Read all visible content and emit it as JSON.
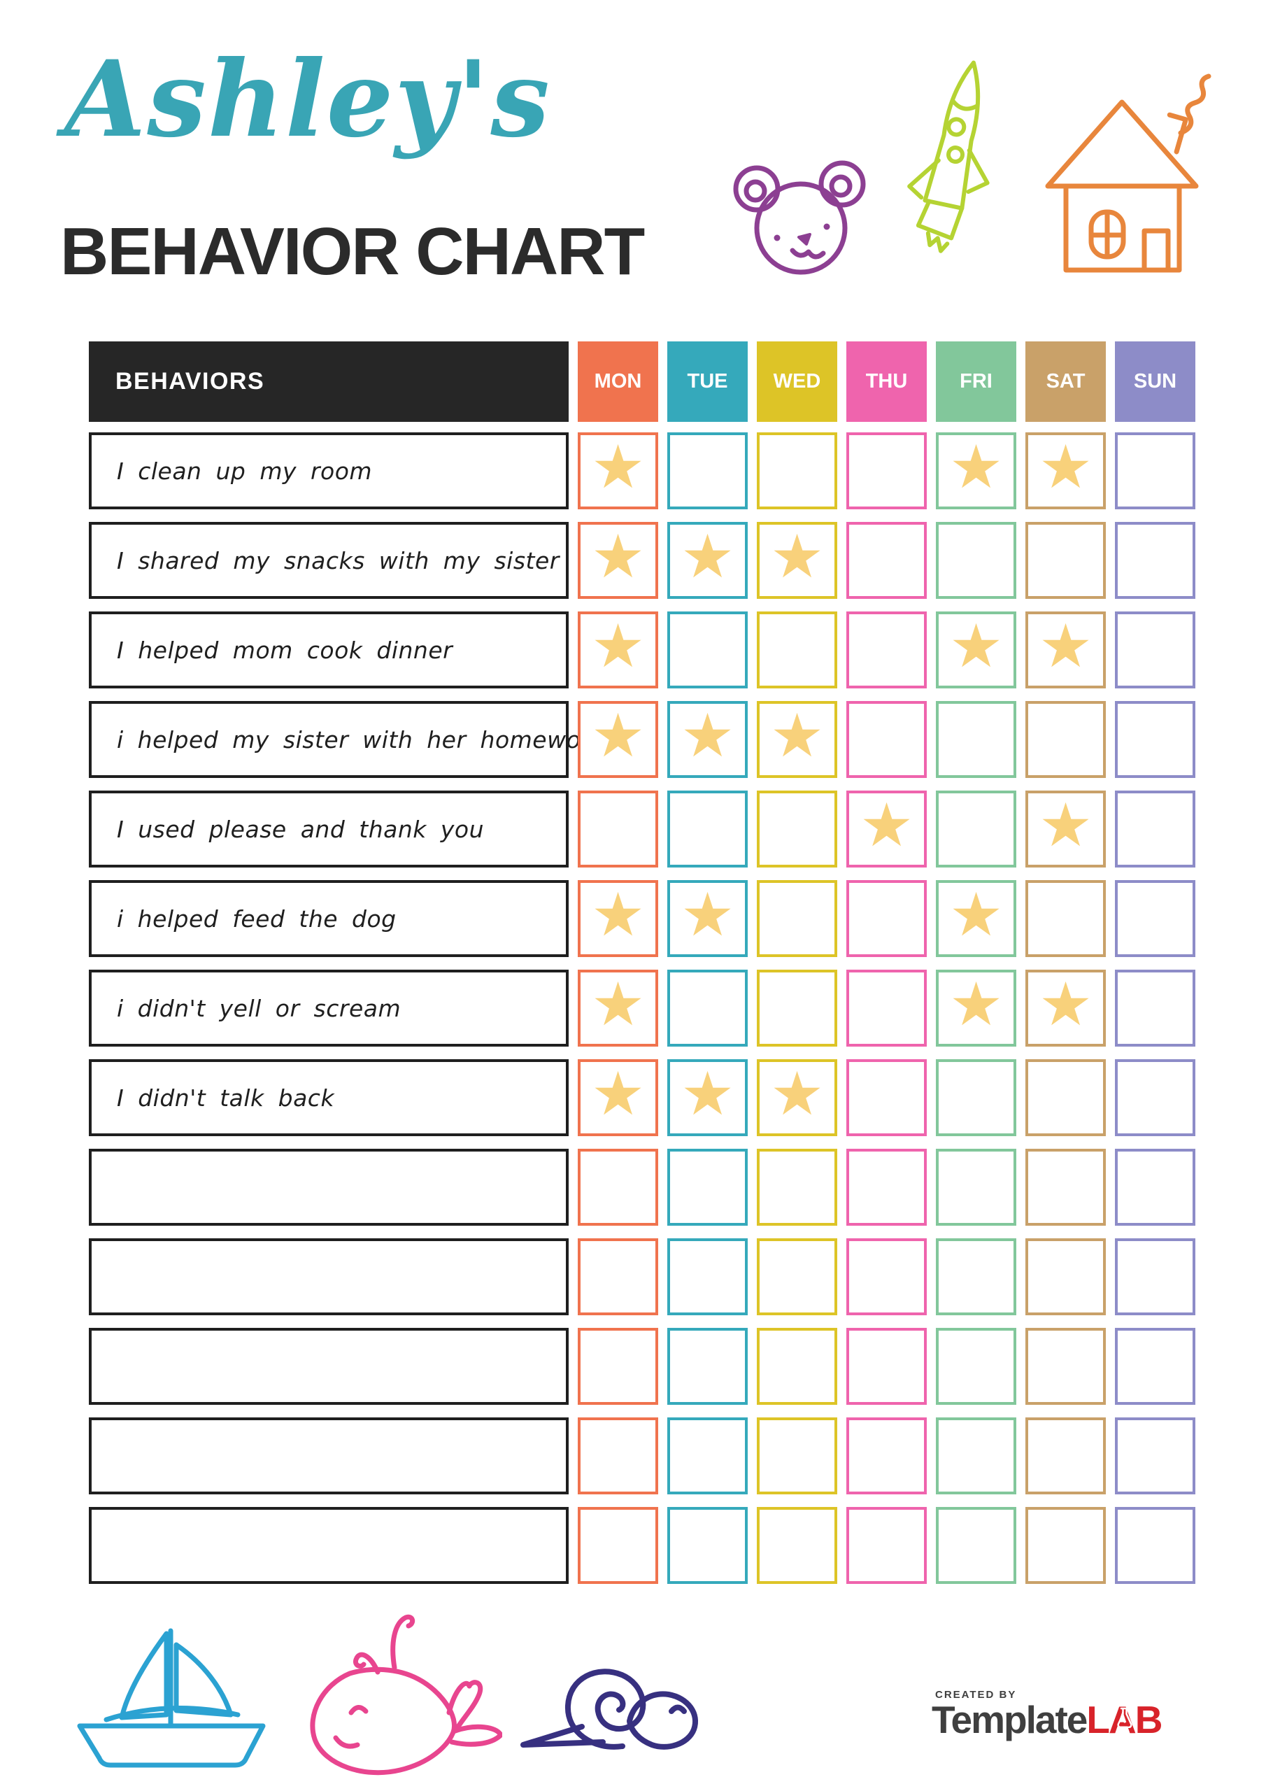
{
  "title": {
    "script": "Ashley's",
    "main": "BEHAVIOR CHART"
  },
  "colors": {
    "title_teal": "#39a5b5",
    "heading_text": "#2b2b2b",
    "header_bg": "#262626",
    "header_text": "#ffffff",
    "row_border": "#1f1f1f",
    "star": "#f8d17b",
    "bear": "#8c3f92",
    "rocket": "#b5d333",
    "house": "#e8863c",
    "sailboat": "#2ba2d2",
    "whale": "#e8458f",
    "snail": "#373080",
    "logo_dark": "#3f3f3f",
    "logo_red": "#d8232a"
  },
  "table": {
    "behaviors_header": "BEHAVIORS",
    "days": [
      {
        "label": "MON",
        "color": "#f0734e"
      },
      {
        "label": "TUE",
        "color": "#35a9bb"
      },
      {
        "label": "WED",
        "color": "#ddc427"
      },
      {
        "label": "THU",
        "color": "#ef64ad"
      },
      {
        "label": "FRI",
        "color": "#82c79b"
      },
      {
        "label": "SAT",
        "color": "#c9a169"
      },
      {
        "label": "SUN",
        "color": "#8d8cc8"
      }
    ],
    "rows": [
      {
        "behavior": "I clean up my room",
        "stars": [
          "MON",
          "FRI",
          "SAT"
        ]
      },
      {
        "behavior": "I shared my snacks with my sister",
        "stars": [
          "MON",
          "TUE",
          "WED"
        ]
      },
      {
        "behavior": "I helped mom cook dinner",
        "stars": [
          "MON",
          "FRI",
          "SAT"
        ]
      },
      {
        "behavior": "i helped my sister with her homework",
        "stars": [
          "MON",
          "TUE",
          "WED"
        ]
      },
      {
        "behavior": "I used please and thank you",
        "stars": [
          "THU",
          "SAT"
        ]
      },
      {
        "behavior": "i helped feed the dog",
        "stars": [
          "MON",
          "TUE",
          "FRI"
        ]
      },
      {
        "behavior": "i didn't yell or scream",
        "stars": [
          "MON",
          "FRI",
          "SAT"
        ]
      },
      {
        "behavior": "I didn't talk back",
        "stars": [
          "MON",
          "TUE",
          "WED"
        ]
      },
      {
        "behavior": "",
        "stars": []
      },
      {
        "behavior": "",
        "stars": []
      },
      {
        "behavior": "",
        "stars": []
      },
      {
        "behavior": "",
        "stars": []
      },
      {
        "behavior": "",
        "stars": []
      }
    ]
  },
  "icons": {
    "star_glyph": "★"
  },
  "footer": {
    "created_by": "CREATED BY",
    "brand_dark": "Template",
    "brand_red": "LAB"
  }
}
